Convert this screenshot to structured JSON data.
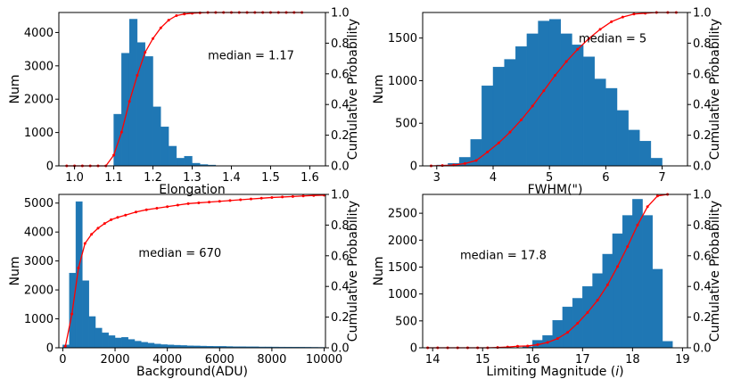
{
  "colors": {
    "bar": "#1f77b4",
    "cdf": "#ff0000",
    "axis": "#000000"
  },
  "chart_data": [
    {
      "type": "bar",
      "name": "elongation",
      "xlabel": "Elongation",
      "ylabel": "Num",
      "y2label": "Cumulative Probability",
      "xlim": [
        0.96,
        1.64
      ],
      "ylim": [
        0,
        4600
      ],
      "y2lim": [
        0,
        1.0
      ],
      "xticks": [
        "1.0",
        "1.1",
        "1.2",
        "1.3",
        "1.4",
        "1.5",
        "1.6"
      ],
      "xtick_values": [
        1.0,
        1.1,
        1.2,
        1.3,
        1.4,
        1.5,
        1.6
      ],
      "yticks": [
        "0",
        "1000",
        "2000",
        "3000",
        "4000"
      ],
      "ytick_values": [
        0,
        1000,
        2000,
        3000,
        4000
      ],
      "y2ticks": [
        "0.0",
        "0.2",
        "0.4",
        "0.6",
        "0.8",
        "1.0"
      ],
      "annotation": "median = 1.17",
      "annotation_pos": [
        1.34,
        3200
      ],
      "bins": [
        {
          "x0": 1.1,
          "x1": 1.12,
          "value": 1550
        },
        {
          "x0": 1.12,
          "x1": 1.14,
          "value": 3380
        },
        {
          "x0": 1.14,
          "x1": 1.16,
          "value": 4400
        },
        {
          "x0": 1.16,
          "x1": 1.18,
          "value": 3700
        },
        {
          "x0": 1.18,
          "x1": 1.2,
          "value": 3280
        },
        {
          "x0": 1.2,
          "x1": 1.22,
          "value": 1770
        },
        {
          "x0": 1.22,
          "x1": 1.24,
          "value": 1170
        },
        {
          "x0": 1.24,
          "x1": 1.26,
          "value": 590
        },
        {
          "x0": 1.26,
          "x1": 1.28,
          "value": 230
        },
        {
          "x0": 1.28,
          "x1": 1.3,
          "value": 290
        },
        {
          "x0": 1.3,
          "x1": 1.32,
          "value": 80
        },
        {
          "x0": 1.32,
          "x1": 1.34,
          "value": 40
        },
        {
          "x0": 1.34,
          "x1": 1.36,
          "value": 25
        }
      ],
      "cdf": {
        "x": [
          0.98,
          1.0,
          1.02,
          1.04,
          1.06,
          1.08,
          1.1,
          1.12,
          1.14,
          1.16,
          1.18,
          1.2,
          1.22,
          1.24,
          1.26,
          1.28,
          1.3,
          1.32,
          1.34,
          1.36,
          1.38,
          1.4,
          1.42,
          1.44,
          1.46,
          1.48,
          1.5,
          1.52,
          1.54,
          1.56,
          1.58
        ],
        "y": [
          0,
          0,
          0,
          0,
          0,
          0,
          0.07,
          0.22,
          0.42,
          0.59,
          0.74,
          0.83,
          0.9,
          0.95,
          0.98,
          0.99,
          0.995,
          0.998,
          1.0,
          1.0,
          1.0,
          1.0,
          1.0,
          1.0,
          1.0,
          1.0,
          1.0,
          1.0,
          1.0,
          1.0,
          1.0
        ]
      }
    },
    {
      "type": "bar",
      "name": "fwhm",
      "xlabel": "FWHM(\")",
      "ylabel": "Num",
      "y2label": "Cumulative Probability",
      "xlim": [
        2.75,
        7.45
      ],
      "ylim": [
        0,
        1800
      ],
      "y2lim": [
        0,
        1.0
      ],
      "xticks": [
        "3",
        "4",
        "5",
        "6",
        "7"
      ],
      "xtick_values": [
        3,
        4,
        5,
        6,
        7
      ],
      "yticks": [
        "0",
        "500",
        "1000",
        "1500"
      ],
      "ytick_values": [
        0,
        500,
        1000,
        1500
      ],
      "y2ticks": [
        "0.0",
        "0.2",
        "0.4",
        "0.6",
        "0.8",
        "1.0"
      ],
      "annotation": "median = 5",
      "annotation_pos": [
        5.52,
        1450
      ],
      "bins": [
        {
          "x0": 3.0,
          "x1": 3.2,
          "value": 10
        },
        {
          "x0": 3.2,
          "x1": 3.4,
          "value": 30
        },
        {
          "x0": 3.4,
          "x1": 3.6,
          "value": 100
        },
        {
          "x0": 3.6,
          "x1": 3.8,
          "value": 310
        },
        {
          "x0": 3.8,
          "x1": 4.0,
          "value": 940
        },
        {
          "x0": 4.0,
          "x1": 4.2,
          "value": 1160
        },
        {
          "x0": 4.2,
          "x1": 4.4,
          "value": 1250
        },
        {
          "x0": 4.4,
          "x1": 4.6,
          "value": 1400
        },
        {
          "x0": 4.6,
          "x1": 4.8,
          "value": 1550
        },
        {
          "x0": 4.8,
          "x1": 5.0,
          "value": 1700
        },
        {
          "x0": 5.0,
          "x1": 5.2,
          "value": 1720
        },
        {
          "x0": 5.2,
          "x1": 5.4,
          "value": 1550
        },
        {
          "x0": 5.4,
          "x1": 5.6,
          "value": 1420
        },
        {
          "x0": 5.6,
          "x1": 5.8,
          "value": 1280
        },
        {
          "x0": 5.8,
          "x1": 6.0,
          "value": 1020
        },
        {
          "x0": 6.0,
          "x1": 6.2,
          "value": 910
        },
        {
          "x0": 6.2,
          "x1": 6.4,
          "value": 650
        },
        {
          "x0": 6.4,
          "x1": 6.6,
          "value": 420
        },
        {
          "x0": 6.6,
          "x1": 6.8,
          "value": 290
        },
        {
          "x0": 6.8,
          "x1": 7.0,
          "value": 90
        }
      ],
      "cdf": {
        "x": [
          2.9,
          3.1,
          3.3,
          3.5,
          3.7,
          3.9,
          4.1,
          4.3,
          4.5,
          4.7,
          4.9,
          5.1,
          5.3,
          5.5,
          5.7,
          5.9,
          6.1,
          6.3,
          6.5,
          6.7,
          6.9,
          7.1,
          7.25
        ],
        "y": [
          0,
          0.002,
          0.005,
          0.015,
          0.035,
          0.09,
          0.15,
          0.22,
          0.3,
          0.39,
          0.49,
          0.59,
          0.68,
          0.76,
          0.83,
          0.89,
          0.94,
          0.97,
          0.99,
          0.995,
          1.0,
          1.0,
          1.0
        ]
      }
    },
    {
      "type": "bar",
      "name": "background",
      "xlabel": "Background(ADU)",
      "ylabel": "Num",
      "y2label": "Cumulative Probability",
      "xlim": [
        -150,
        10050
      ],
      "ylim": [
        0,
        5300
      ],
      "y2lim": [
        0,
        1.0
      ],
      "xticks": [
        "0",
        "2000",
        "4000",
        "6000",
        "8000",
        "10000"
      ],
      "xtick_values": [
        0,
        2000,
        4000,
        6000,
        8000,
        10000
      ],
      "yticks": [
        "0",
        "1000",
        "2000",
        "3000",
        "4000",
        "5000"
      ],
      "ytick_values": [
        0,
        1000,
        2000,
        3000,
        4000,
        5000
      ],
      "y2ticks": [
        "0.0",
        "0.2",
        "0.4",
        "0.6",
        "0.8",
        "1.0"
      ],
      "annotation": "median = 670",
      "annotation_pos": [
        2900,
        3150
      ],
      "bins": [
        {
          "x0": 0,
          "x1": 250,
          "value": 100
        },
        {
          "x0": 250,
          "x1": 500,
          "value": 2580
        },
        {
          "x0": 500,
          "x1": 750,
          "value": 5050
        },
        {
          "x0": 750,
          "x1": 1000,
          "value": 2320
        },
        {
          "x0": 1000,
          "x1": 1250,
          "value": 1080
        },
        {
          "x0": 1250,
          "x1": 1500,
          "value": 680
        },
        {
          "x0": 1500,
          "x1": 1750,
          "value": 520
        },
        {
          "x0": 1750,
          "x1": 2000,
          "value": 420
        },
        {
          "x0": 2000,
          "x1": 2250,
          "value": 340
        },
        {
          "x0": 2250,
          "x1": 2500,
          "value": 360
        },
        {
          "x0": 2500,
          "x1": 2750,
          "value": 290
        },
        {
          "x0": 2750,
          "x1": 3000,
          "value": 230
        },
        {
          "x0": 3000,
          "x1": 3250,
          "value": 190
        },
        {
          "x0": 3250,
          "x1": 3500,
          "value": 160
        },
        {
          "x0": 3500,
          "x1": 3750,
          "value": 130
        },
        {
          "x0": 3750,
          "x1": 4000,
          "value": 110
        },
        {
          "x0": 4000,
          "x1": 4250,
          "value": 100
        },
        {
          "x0": 4250,
          "x1": 4500,
          "value": 90
        },
        {
          "x0": 4500,
          "x1": 4750,
          "value": 80
        },
        {
          "x0": 4750,
          "x1": 5000,
          "value": 70
        },
        {
          "x0": 5000,
          "x1": 5250,
          "value": 65
        },
        {
          "x0": 5250,
          "x1": 5500,
          "value": 60
        },
        {
          "x0": 5500,
          "x1": 5750,
          "value": 55
        },
        {
          "x0": 5750,
          "x1": 6000,
          "value": 50
        },
        {
          "x0": 6000,
          "x1": 6250,
          "value": 50
        },
        {
          "x0": 6250,
          "x1": 6500,
          "value": 45
        },
        {
          "x0": 6500,
          "x1": 6750,
          "value": 40
        },
        {
          "x0": 6750,
          "x1": 7000,
          "value": 40
        },
        {
          "x0": 7000,
          "x1": 7250,
          "value": 35
        },
        {
          "x0": 7250,
          "x1": 7500,
          "value": 35
        },
        {
          "x0": 7500,
          "x1": 7750,
          "value": 30
        },
        {
          "x0": 7750,
          "x1": 8000,
          "value": 30
        },
        {
          "x0": 8000,
          "x1": 8250,
          "value": 28
        },
        {
          "x0": 8250,
          "x1": 8500,
          "value": 26
        },
        {
          "x0": 8500,
          "x1": 8750,
          "value": 25
        },
        {
          "x0": 8750,
          "x1": 9000,
          "value": 24
        },
        {
          "x0": 9000,
          "x1": 9250,
          "value": 22
        },
        {
          "x0": 9250,
          "x1": 9500,
          "value": 20
        },
        {
          "x0": 9500,
          "x1": 9750,
          "value": 18
        },
        {
          "x0": 9750,
          "x1": 10000,
          "value": 16
        }
      ],
      "cdf": {
        "x": [
          100,
          350,
          600,
          850,
          1100,
          1350,
          1600,
          1850,
          2100,
          2400,
          2800,
          3200,
          3600,
          4000,
          4400,
          4800,
          5200,
          5600,
          6000,
          6400,
          6800,
          7200,
          7600,
          8000,
          8400,
          8800,
          9200,
          9600,
          10000
        ],
        "y": [
          0.01,
          0.22,
          0.52,
          0.68,
          0.74,
          0.78,
          0.81,
          0.835,
          0.85,
          0.865,
          0.885,
          0.9,
          0.91,
          0.92,
          0.93,
          0.94,
          0.945,
          0.95,
          0.955,
          0.96,
          0.965,
          0.97,
          0.975,
          0.98,
          0.983,
          0.986,
          0.99,
          0.993,
          0.995
        ]
      }
    },
    {
      "type": "bar",
      "name": "limiting-magnitude",
      "xlabel": "Limiting Magnitude (i)",
      "xlabel_prefix": "Limiting Magnitude (",
      "xlabel_var": "i",
      "xlabel_suffix": ")",
      "ylabel": "Num",
      "y2label": "Cumulative Probability",
      "xlim": [
        13.8,
        19.1
      ],
      "ylim": [
        0,
        2850
      ],
      "y2lim": [
        0,
        1.0
      ],
      "xticks": [
        "14",
        "15",
        "16",
        "17",
        "18",
        "19"
      ],
      "xtick_values": [
        14,
        15,
        16,
        17,
        18,
        19
      ],
      "yticks": [
        "0",
        "500",
        "1000",
        "1500",
        "2000",
        "2500"
      ],
      "ytick_values": [
        0,
        500,
        1000,
        1500,
        2000,
        2500
      ],
      "y2ticks": [
        "0.0",
        "0.2",
        "0.4",
        "0.6",
        "0.8",
        "1.0"
      ],
      "annotation": "median = 17.8",
      "annotation_pos": [
        14.55,
        1650
      ],
      "bins": [
        {
          "x0": 15.8,
          "x1": 16.0,
          "value": 20
        },
        {
          "x0": 16.0,
          "x1": 16.2,
          "value": 140
        },
        {
          "x0": 16.2,
          "x1": 16.4,
          "value": 230
        },
        {
          "x0": 16.4,
          "x1": 16.6,
          "value": 510
        },
        {
          "x0": 16.6,
          "x1": 16.8,
          "value": 760
        },
        {
          "x0": 16.8,
          "x1": 17.0,
          "value": 920
        },
        {
          "x0": 17.0,
          "x1": 17.2,
          "value": 1140
        },
        {
          "x0": 17.2,
          "x1": 17.4,
          "value": 1380
        },
        {
          "x0": 17.4,
          "x1": 17.6,
          "value": 1740
        },
        {
          "x0": 17.6,
          "x1": 17.8,
          "value": 2120
        },
        {
          "x0": 17.8,
          "x1": 18.0,
          "value": 2460
        },
        {
          "x0": 18.0,
          "x1": 18.2,
          "value": 2760
        },
        {
          "x0": 18.2,
          "x1": 18.4,
          "value": 2460
        },
        {
          "x0": 18.4,
          "x1": 18.6,
          "value": 1460
        },
        {
          "x0": 18.6,
          "x1": 18.8,
          "value": 120
        }
      ],
      "cdf": {
        "x": [
          13.9,
          14.1,
          14.3,
          14.5,
          14.7,
          14.9,
          15.1,
          15.3,
          15.5,
          15.7,
          15.9,
          16.1,
          16.3,
          16.5,
          16.7,
          16.9,
          17.1,
          17.3,
          17.5,
          17.7,
          17.9,
          18.1,
          18.3,
          18.5,
          18.7
        ],
        "y": [
          0,
          0,
          0,
          0,
          0,
          0,
          0,
          0.002,
          0.005,
          0.01,
          0.012,
          0.02,
          0.035,
          0.06,
          0.1,
          0.16,
          0.23,
          0.31,
          0.41,
          0.53,
          0.66,
          0.8,
          0.92,
          0.99,
          1.0
        ]
      }
    }
  ]
}
